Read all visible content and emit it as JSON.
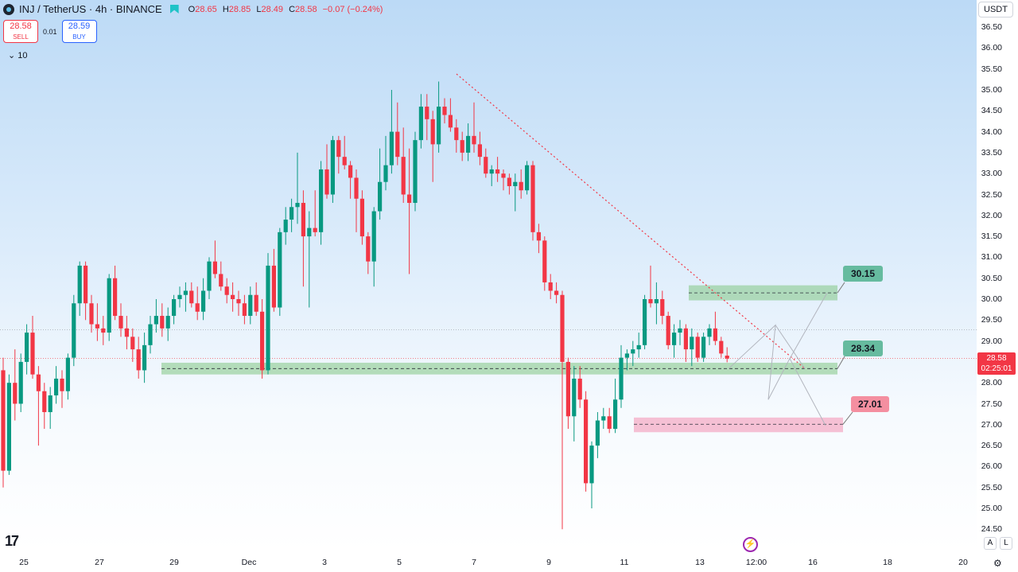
{
  "header": {
    "symbol": "INJ / TetherUS · 4h · BINANCE",
    "ohlc": {
      "o_label": "O",
      "o": "28.65",
      "h_label": "H",
      "h": "28.85",
      "l_label": "L",
      "l": "28.49",
      "c_label": "C",
      "c": "28.58",
      "change": "−0.07 (−0.24%)"
    }
  },
  "trade": {
    "sell_price": "28.58",
    "sell_label": "SELL",
    "spread": "0.01",
    "buy_price": "28.59",
    "buy_label": "BUY"
  },
  "indicator": {
    "label": "10"
  },
  "currency": "USDT",
  "last_price_tag": {
    "price": "28.58",
    "countdown": "02:25:01"
  },
  "level_tags": [
    "30.15",
    "28.34",
    "27.01"
  ],
  "right_buttons": {
    "auto": "A",
    "log": "L"
  },
  "colors": {
    "up": "#089981",
    "down": "#f23645",
    "trendline": "#f23645",
    "zone_green": "#a5d6a7",
    "zone_red": "#f8bbd0"
  },
  "chart_data": {
    "type": "candlestick",
    "instrument": "INJ / TetherUS",
    "timeframe": "4h",
    "exchange": "BINANCE",
    "y_ticks": [
      "36.50",
      "36.00",
      "35.50",
      "35.00",
      "34.50",
      "34.00",
      "33.50",
      "33.00",
      "32.50",
      "32.00",
      "31.50",
      "31.00",
      "30.50",
      "30.00",
      "29.50",
      "29.00",
      "28.50",
      "28.00",
      "27.50",
      "27.00",
      "26.50",
      "26.00",
      "25.50",
      "25.00",
      "24.50"
    ],
    "x_ticks": [
      "25",
      "27",
      "29",
      "Dec",
      "3",
      "5",
      "7",
      "9",
      "11",
      "13",
      "12:00",
      "16",
      "18",
      "20"
    ],
    "ylim": [
      24.3,
      36.8
    ],
    "last_price": 28.58,
    "levels": [
      {
        "label": "30.15",
        "price": 30.15,
        "zone": [
          29.97,
          30.33
        ],
        "color": "green"
      },
      {
        "label": "28.34",
        "price": 28.34,
        "zone": [
          28.2,
          28.48
        ],
        "color": "green"
      },
      {
        "label": "27.01",
        "price": 27.01,
        "zone": [
          26.82,
          27.17
        ],
        "color": "red"
      }
    ],
    "horizontal_line": 29.27,
    "trendline": {
      "from_price": 35.38,
      "to_price": 28.34
    },
    "projection_path": [
      28.34,
      29.38,
      27.6,
      28.58,
      26.98
    ],
    "candles": [
      [
        28.3,
        28.6,
        25.5,
        25.9
      ],
      [
        25.9,
        28.2,
        25.8,
        28.0
      ],
      [
        28.0,
        28.8,
        27.1,
        27.5
      ],
      [
        27.5,
        28.7,
        27.3,
        28.5
      ],
      [
        28.5,
        29.4,
        28.2,
        29.2
      ],
      [
        29.2,
        29.6,
        28.1,
        28.2
      ],
      [
        28.2,
        28.4,
        26.5,
        27.8
      ],
      [
        27.8,
        28.0,
        26.9,
        27.3
      ],
      [
        27.3,
        27.9,
        26.9,
        27.7
      ],
      [
        27.7,
        28.4,
        27.5,
        28.1
      ],
      [
        28.1,
        28.3,
        27.4,
        27.8
      ],
      [
        27.8,
        28.7,
        27.6,
        28.6
      ],
      [
        28.6,
        30.1,
        28.4,
        29.9
      ],
      [
        29.9,
        30.9,
        29.6,
        30.8
      ],
      [
        30.8,
        30.9,
        29.5,
        29.9
      ],
      [
        29.9,
        30.1,
        29.2,
        29.4
      ],
      [
        29.4,
        29.9,
        29.0,
        29.3
      ],
      [
        29.3,
        29.6,
        28.9,
        29.2
      ],
      [
        29.2,
        30.6,
        29.0,
        30.5
      ],
      [
        30.5,
        30.8,
        29.5,
        29.6
      ],
      [
        29.6,
        29.9,
        29.1,
        29.3
      ],
      [
        29.3,
        29.6,
        28.8,
        29.1
      ],
      [
        29.1,
        29.3,
        28.5,
        28.8
      ],
      [
        28.8,
        29.1,
        28.1,
        28.3
      ],
      [
        28.3,
        29.2,
        28.0,
        28.9
      ],
      [
        28.9,
        29.6,
        28.7,
        29.4
      ],
      [
        29.4,
        30.0,
        29.2,
        29.6
      ],
      [
        29.6,
        29.9,
        29.1,
        29.3
      ],
      [
        29.3,
        29.8,
        29.0,
        29.6
      ],
      [
        29.6,
        30.1,
        29.4,
        30.0
      ],
      [
        30.0,
        30.3,
        29.8,
        30.1
      ],
      [
        30.1,
        30.4,
        29.7,
        30.2
      ],
      [
        30.2,
        30.4,
        29.8,
        29.9
      ],
      [
        29.9,
        30.3,
        29.5,
        29.7
      ],
      [
        29.7,
        30.5,
        29.5,
        30.2
      ],
      [
        30.2,
        31.0,
        30.0,
        30.9
      ],
      [
        30.9,
        31.4,
        30.5,
        30.6
      ],
      [
        30.6,
        30.9,
        30.2,
        30.3
      ],
      [
        30.3,
        30.5,
        29.9,
        30.1
      ],
      [
        30.1,
        30.4,
        29.7,
        30.0
      ],
      [
        30.0,
        30.2,
        29.6,
        29.9
      ],
      [
        29.9,
        30.1,
        29.4,
        29.6
      ],
      [
        29.6,
        30.3,
        29.4,
        30.1
      ],
      [
        30.1,
        30.4,
        29.6,
        29.7
      ],
      [
        29.7,
        30.0,
        28.1,
        28.3
      ],
      [
        28.3,
        31.1,
        28.2,
        30.8
      ],
      [
        30.8,
        31.2,
        29.7,
        29.8
      ],
      [
        29.8,
        31.7,
        29.6,
        31.6
      ],
      [
        31.6,
        32.2,
        31.3,
        31.9
      ],
      [
        31.9,
        32.4,
        31.6,
        32.2
      ],
      [
        32.2,
        33.5,
        31.8,
        32.3
      ],
      [
        32.3,
        32.6,
        30.3,
        31.5
      ],
      [
        31.5,
        32.1,
        29.8,
        31.7
      ],
      [
        31.7,
        32.6,
        31.5,
        31.6
      ],
      [
        31.6,
        33.3,
        31.3,
        33.1
      ],
      [
        33.1,
        33.7,
        32.4,
        32.5
      ],
      [
        32.5,
        33.9,
        32.3,
        33.8
      ],
      [
        33.8,
        33.9,
        33.0,
        33.4
      ],
      [
        33.4,
        33.9,
        33.1,
        33.2
      ],
      [
        33.2,
        33.3,
        32.4,
        32.9
      ],
      [
        32.9,
        33.1,
        31.6,
        32.4
      ],
      [
        32.4,
        32.6,
        31.3,
        31.5
      ],
      [
        31.5,
        31.6,
        30.6,
        30.9
      ],
      [
        30.9,
        32.2,
        30.3,
        32.1
      ],
      [
        32.1,
        33.6,
        31.9,
        32.8
      ],
      [
        32.8,
        33.9,
        32.6,
        33.2
      ],
      [
        33.2,
        35.0,
        33.0,
        34.0
      ],
      [
        34.0,
        34.7,
        33.2,
        33.4
      ],
      [
        33.4,
        34.1,
        32.3,
        32.5
      ],
      [
        32.5,
        33.6,
        30.6,
        32.3
      ],
      [
        32.3,
        34.0,
        32.1,
        33.8
      ],
      [
        33.8,
        34.9,
        33.6,
        34.6
      ],
      [
        34.6,
        34.9,
        33.8,
        34.3
      ],
      [
        34.3,
        34.5,
        32.8,
        33.7
      ],
      [
        33.7,
        35.2,
        33.5,
        34.6
      ],
      [
        34.6,
        34.8,
        34.2,
        34.4
      ],
      [
        34.4,
        34.8,
        34.0,
        34.1
      ],
      [
        34.1,
        34.3,
        33.5,
        33.8
      ],
      [
        33.8,
        34.0,
        33.3,
        33.5
      ],
      [
        33.5,
        34.2,
        33.3,
        33.9
      ],
      [
        33.9,
        34.7,
        33.5,
        33.7
      ],
      [
        33.7,
        34.0,
        33.2,
        33.4
      ],
      [
        33.4,
        33.6,
        32.9,
        33.0
      ],
      [
        33.0,
        33.2,
        32.7,
        33.1
      ],
      [
        33.1,
        33.4,
        32.8,
        33.0
      ],
      [
        33.0,
        33.1,
        32.6,
        32.9
      ],
      [
        32.9,
        33.0,
        32.5,
        32.7
      ],
      [
        32.7,
        33.0,
        32.1,
        32.8
      ],
      [
        32.8,
        33.1,
        32.4,
        32.6
      ],
      [
        32.6,
        33.3,
        32.5,
        33.2
      ],
      [
        33.2,
        33.3,
        31.4,
        31.6
      ],
      [
        31.6,
        31.8,
        31.1,
        31.4
      ],
      [
        31.4,
        31.5,
        30.2,
        30.4
      ],
      [
        30.4,
        30.6,
        30.0,
        30.2
      ],
      [
        30.2,
        30.4,
        29.9,
        30.1
      ],
      [
        30.1,
        30.2,
        24.5,
        28.5
      ],
      [
        28.5,
        28.6,
        26.9,
        27.2
      ],
      [
        27.2,
        28.4,
        26.6,
        28.1
      ],
      [
        28.1,
        28.4,
        27.4,
        27.6
      ],
      [
        27.6,
        27.8,
        25.4,
        25.6
      ],
      [
        25.6,
        26.6,
        25.0,
        26.5
      ],
      [
        26.5,
        27.3,
        26.2,
        27.1
      ],
      [
        27.1,
        27.4,
        26.9,
        27.2
      ],
      [
        27.2,
        27.4,
        26.8,
        26.9
      ],
      [
        26.9,
        28.1,
        26.8,
        27.6
      ],
      [
        27.6,
        28.9,
        27.4,
        28.6
      ],
      [
        28.6,
        28.8,
        28.3,
        28.7
      ],
      [
        28.7,
        29.0,
        28.4,
        28.8
      ],
      [
        28.8,
        29.2,
        28.6,
        28.9
      ],
      [
        28.9,
        30.1,
        28.8,
        30.0
      ],
      [
        30.0,
        30.8,
        29.8,
        29.9
      ],
      [
        29.9,
        30.4,
        29.4,
        30.0
      ],
      [
        30.0,
        30.2,
        29.4,
        29.6
      ],
      [
        29.6,
        29.7,
        28.8,
        28.9
      ],
      [
        28.9,
        29.4,
        28.6,
        29.2
      ],
      [
        29.2,
        29.5,
        28.9,
        29.3
      ],
      [
        29.3,
        29.4,
        28.5,
        28.8
      ],
      [
        28.8,
        29.3,
        28.4,
        29.1
      ],
      [
        29.1,
        29.2,
        28.5,
        28.6
      ],
      [
        28.6,
        29.2,
        28.5,
        29.1
      ],
      [
        29.1,
        29.4,
        28.9,
        29.3
      ],
      [
        29.3,
        29.7,
        28.9,
        29.0
      ],
      [
        29.0,
        29.1,
        28.6,
        28.7
      ],
      [
        28.65,
        28.85,
        28.49,
        28.58
      ]
    ]
  }
}
